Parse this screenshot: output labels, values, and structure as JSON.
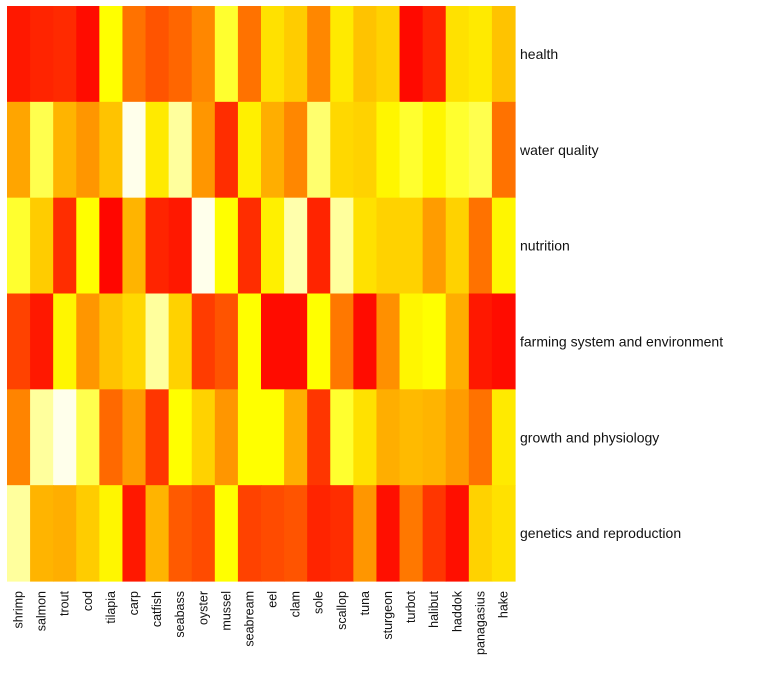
{
  "chart_data": {
    "type": "heatmap",
    "title": "",
    "xlabel": "",
    "ylabel": "",
    "rows": [
      "health",
      "water quality",
      "nutrition",
      "farming system and environment",
      "growth and physiology",
      "genetics and reproduction"
    ],
    "columns": [
      "shrimp",
      "salmon",
      "trout",
      "cod",
      "tilapia",
      "carp",
      "catfish",
      "seabass",
      "oyster",
      "mussel",
      "seabream",
      "eel",
      "clam",
      "sole",
      "scallop",
      "tuna",
      "sturgeon",
      "turbot",
      "halibut",
      "haddok",
      "panagasius",
      "hake"
    ],
    "value_scale": "0 = white/pale yellow, 1 = red (heat colors)",
    "values": [
      [
        0.92,
        0.88,
        0.86,
        0.96,
        0.15,
        0.62,
        0.72,
        0.66,
        0.55,
        0.12,
        0.62,
        0.25,
        0.32,
        0.55,
        0.22,
        0.35,
        0.3,
        0.97,
        0.88,
        0.25,
        0.22,
        0.35
      ],
      [
        0.45,
        0.1,
        0.4,
        0.5,
        0.35,
        0.0,
        0.22,
        0.05,
        0.5,
        0.85,
        0.2,
        0.42,
        0.55,
        0.08,
        0.28,
        0.3,
        0.18,
        0.12,
        0.18,
        0.12,
        0.1,
        0.62
      ],
      [
        0.12,
        0.32,
        0.85,
        0.15,
        0.98,
        0.4,
        0.88,
        0.92,
        0.0,
        0.15,
        0.85,
        0.2,
        0.04,
        0.88,
        0.05,
        0.25,
        0.3,
        0.3,
        0.48,
        0.3,
        0.62,
        0.18
      ],
      [
        0.78,
        0.92,
        0.18,
        0.5,
        0.35,
        0.28,
        0.05,
        0.3,
        0.8,
        0.72,
        0.15,
        0.96,
        0.96,
        0.15,
        0.6,
        0.96,
        0.52,
        0.18,
        0.15,
        0.42,
        0.92,
        0.96
      ],
      [
        0.56,
        0.05,
        0.0,
        0.1,
        0.65,
        0.48,
        0.82,
        0.15,
        0.3,
        0.5,
        0.15,
        0.15,
        0.42,
        0.82,
        0.12,
        0.25,
        0.42,
        0.38,
        0.4,
        0.48,
        0.62,
        0.22
      ],
      [
        0.05,
        0.4,
        0.42,
        0.32,
        0.18,
        0.92,
        0.4,
        0.7,
        0.75,
        0.15,
        0.78,
        0.75,
        0.72,
        0.88,
        0.85,
        0.5,
        0.95,
        0.6,
        0.82,
        0.95,
        0.3,
        0.25
      ]
    ],
    "legend": "none",
    "grid": false
  }
}
